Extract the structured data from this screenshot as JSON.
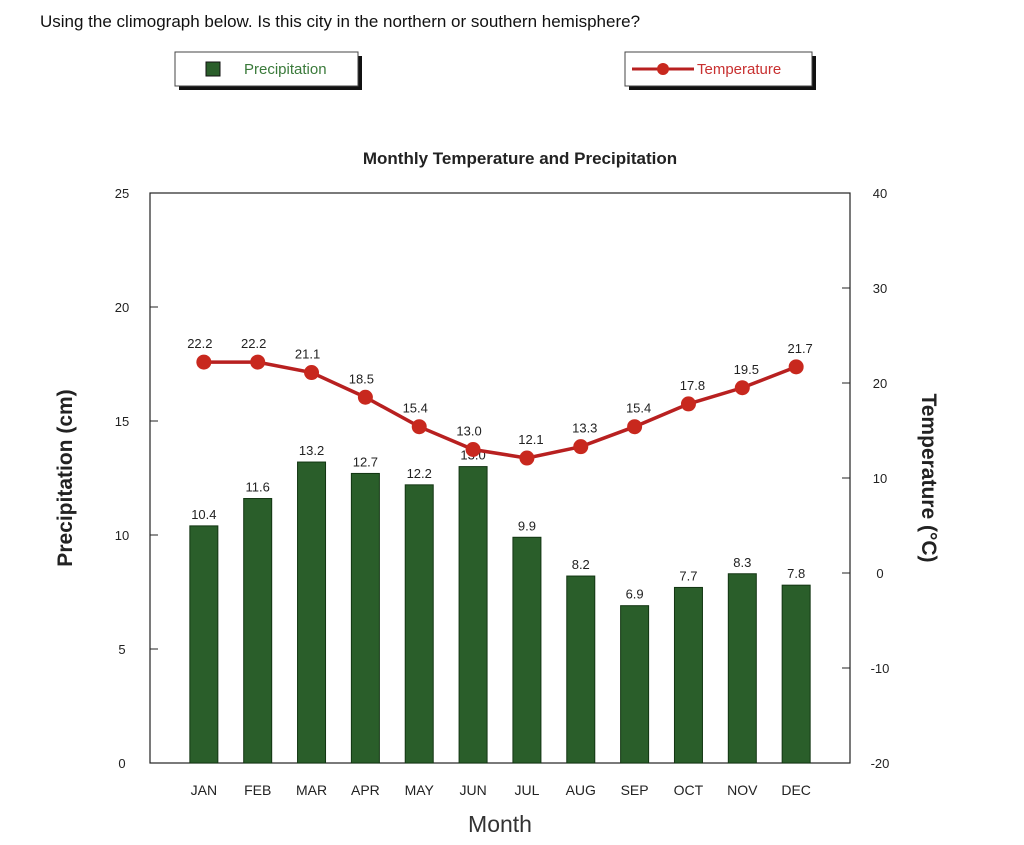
{
  "question": "Using the climograph below. Is this city in the northern or southern hemisphere?",
  "chart_data": {
    "type": "bar+line",
    "title": "Monthly Temperature and Precipitation",
    "xlabel": "Month",
    "ylabel_left": "Precipitation  (cm)",
    "ylabel_right": "Temperature (°C)",
    "categories": [
      "JAN",
      "FEB",
      "MAR",
      "APR",
      "MAY",
      "JUN",
      "JUL",
      "AUG",
      "SEP",
      "OCT",
      "NOV",
      "DEC"
    ],
    "ylim_left": [
      0,
      25
    ],
    "yticks_left": [
      0,
      5,
      10,
      15,
      20,
      25
    ],
    "ylim_right": [
      -20,
      40
    ],
    "yticks_right": [
      -20,
      -10,
      0,
      10,
      20,
      30,
      40
    ],
    "grid": false,
    "legend_placement": "top",
    "series": [
      {
        "name": "Precipitation",
        "type": "bar",
        "axis": "left",
        "color": "#2a5e2a",
        "values": [
          10.4,
          11.6,
          13.2,
          12.7,
          12.2,
          13.0,
          9.9,
          8.2,
          6.9,
          7.7,
          8.3,
          7.8
        ]
      },
      {
        "name": "Temperature",
        "type": "line",
        "axis": "right",
        "color": "#b82020",
        "values": [
          22.2,
          22.2,
          21.1,
          18.5,
          15.4,
          13.0,
          12.1,
          13.3,
          15.4,
          17.8,
          19.5,
          21.7
        ]
      }
    ]
  }
}
